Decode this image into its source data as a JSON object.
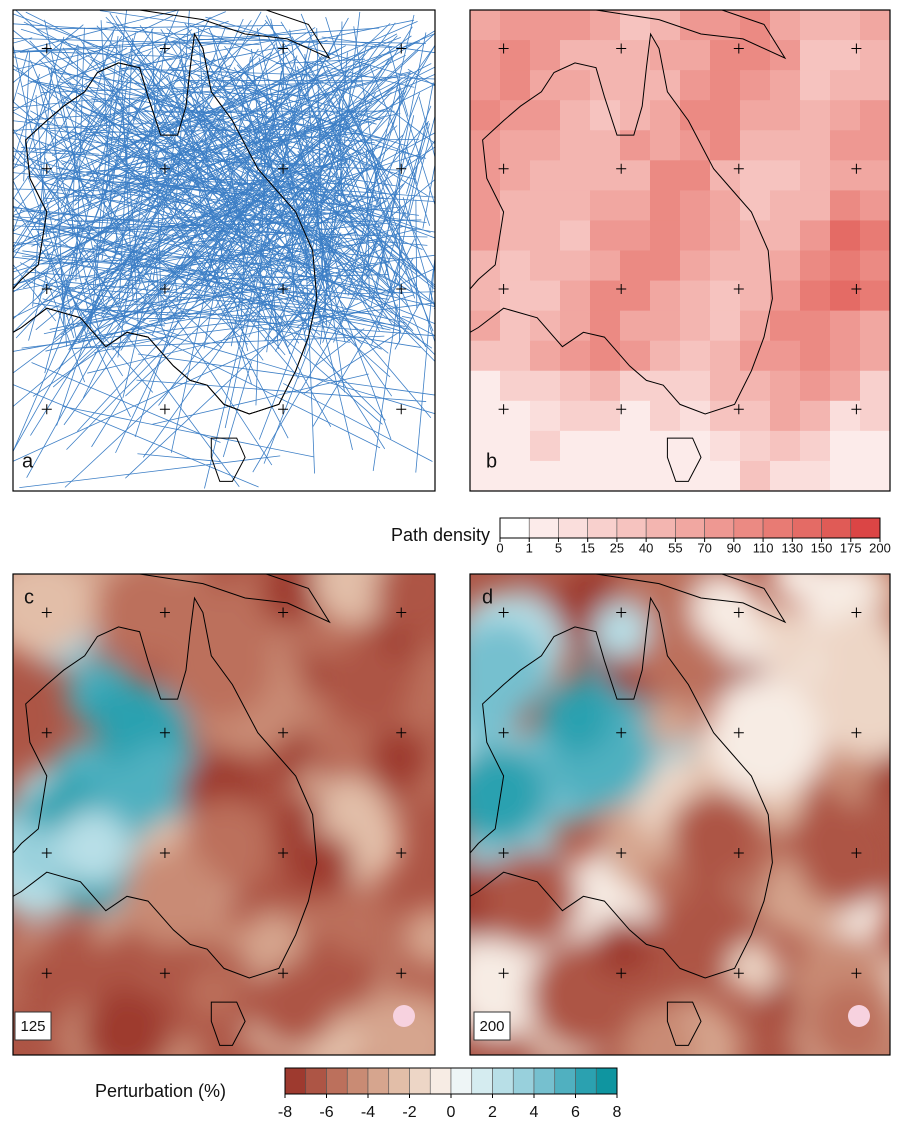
{
  "panels": [
    {
      "label": "a"
    },
    {
      "label": "b"
    },
    {
      "label": "c",
      "inset_label": "125"
    },
    {
      "label": "d",
      "inset_label": "200"
    }
  ],
  "colorbars": [
    {
      "title": "Path density",
      "ticks": [
        0,
        1,
        5,
        15,
        25,
        40,
        55,
        70,
        90,
        110,
        130,
        150,
        175,
        200
      ],
      "colors": [
        "#ffffff",
        "#fcebea",
        "#fadedc",
        "#f8d0cd",
        "#f6c3bf",
        "#f3b5b0",
        "#f1a7a1",
        "#ee9892",
        "#eb8a83",
        "#e87b74",
        "#e46b65",
        "#e05b56",
        "#db4545"
      ]
    },
    {
      "title": "Perturbation (%)",
      "ticks": [
        -8,
        -6,
        -4,
        -2,
        0,
        2,
        4,
        6,
        8
      ],
      "colors": [
        "#9e3a2f",
        "#ad5545",
        "#bc705c",
        "#c98b74",
        "#d6a58e",
        "#e2bea8",
        "#edd6c6",
        "#f7ece4",
        "#eef5f6",
        "#d5ecf0",
        "#b8dfe7",
        "#98d0dc",
        "#76c0cf",
        "#50b0c0",
        "#2ba1b0",
        "#0f95a0"
      ]
    }
  ]
}
